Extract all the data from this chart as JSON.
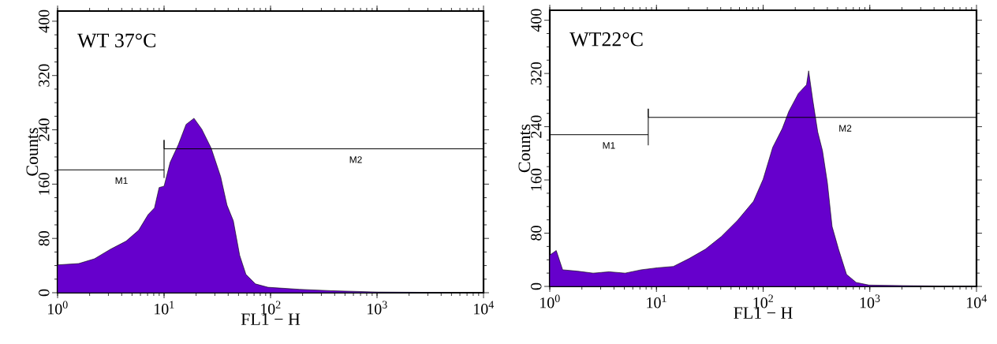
{
  "chart_data": [
    {
      "type": "area",
      "title": "WT 37°C",
      "xlabel": "FL1 − H",
      "ylabel": "Counts",
      "log": "x",
      "grid": false,
      "xlim": [
        1,
        10000
      ],
      "ylim": [
        0,
        415
      ],
      "xticks": [
        {
          "value": 1,
          "label": "10$^{0}$"
        },
        {
          "value": 10,
          "label": "10$^{1}$"
        },
        {
          "value": 100,
          "label": "10$^{2}$"
        },
        {
          "value": 1000,
          "label": "10$^{3}$"
        },
        {
          "value": 10000,
          "label": "10$^{4}$"
        }
      ],
      "yticks": [
        0,
        80,
        160,
        240,
        320,
        400
      ],
      "series": [
        {
          "color": "#6600cc",
          "x": [
            1,
            1.58,
            2.22,
            3.13,
            4.4,
            5.77,
            7.08,
            8.13,
            8.99,
            10,
            11.4,
            13.6,
            16.1,
            19.1,
            22.6,
            27.7,
            34,
            39,
            44.7,
            51.3,
            58.7,
            72.1,
            94.6,
            187,
            371,
            1030,
            10000
          ],
          "values": [
            41,
            43,
            50,
            64,
            76,
            92,
            115,
            125,
            155,
            157,
            192,
            218,
            248,
            257,
            241,
            213,
            171,
            129,
            106,
            55,
            27,
            13,
            8,
            5,
            3,
            1,
            0
          ]
        },
        {
          "type": "line",
          "name": "M1",
          "color": "#000000",
          "x": [
            1,
            10
          ],
          "values": [
            181,
            181
          ]
        },
        {
          "type": "line",
          "name": "M2",
          "color": "#000000",
          "x": [
            10,
            10,
            10,
            10000
          ],
          "values": [
            169,
            225,
            212,
            212
          ]
        }
      ]
    },
    {
      "type": "area",
      "title": "WT22°C",
      "xlabel": "FL1 − H",
      "ylabel": "Counts",
      "log": "x",
      "grid": false,
      "xlim": [
        1,
        10000
      ],
      "ylim": [
        0,
        415
      ],
      "xticks": [
        {
          "value": 1,
          "label": "10$^{0}$"
        },
        {
          "value": 10,
          "label": "10$^{1}$"
        },
        {
          "value": 100,
          "label": "10$^{2}$"
        },
        {
          "value": 1000,
          "label": "10$^{3}$"
        },
        {
          "value": 10000,
          "label": "10$^{4}$"
        }
      ],
      "yticks": [
        0,
        80,
        160,
        240,
        320,
        400
      ],
      "series": [
        {
          "color": "#6600cc",
          "x": [
            1,
            1.15,
            1.32,
            1.8,
            2.55,
            3.6,
            5.09,
            7.2,
            10.2,
            14.4,
            20.3,
            28.8,
            40.6,
            57.4,
            81.3,
            100,
            123,
            151,
            174,
            214,
            255,
            267,
            292,
            325,
            360,
            400,
            443,
            509,
            605,
            745,
            982,
            2590,
            10000
          ],
          "values": [
            47,
            54,
            25,
            23,
            20,
            22,
            20,
            25,
            28,
            30,
            42,
            56,
            75,
            99,
            128,
            161,
            209,
            237,
            263,
            290,
            303,
            324,
            280,
            232,
            204,
            156,
            90,
            56,
            18,
            6,
            2,
            1,
            0
          ]
        },
        {
          "type": "line",
          "name": "M1",
          "color": "#000000",
          "x": [
            1,
            8.38
          ],
          "values": [
            228,
            228
          ]
        },
        {
          "type": "line",
          "name": "M2",
          "color": "#000000",
          "x": [
            8.38,
            8.38,
            8.38,
            10000
          ],
          "values": [
            212,
            267,
            254,
            254
          ]
        }
      ]
    }
  ]
}
